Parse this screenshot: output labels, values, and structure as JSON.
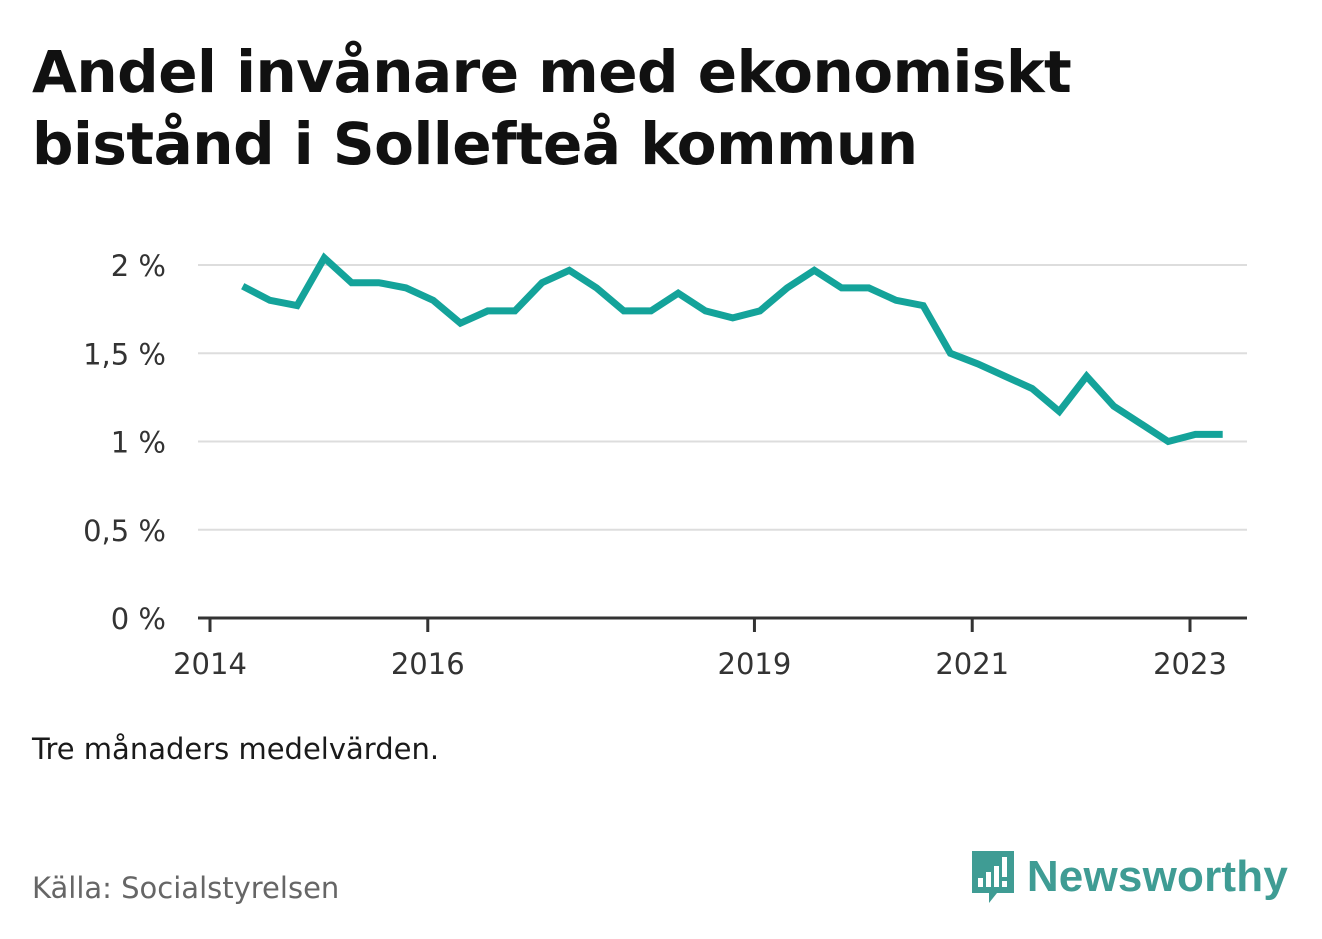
{
  "title": "Andel invånare med ekonomiskt bistånd i Sollefteå kommun",
  "note": "Tre månaders medelvärden.",
  "source": "Källa: Socialstyrelsen",
  "brand": {
    "name": "Newsworthy",
    "logo_icon": "bar-chart-speech-bubble-icon",
    "color": "#3f9c94"
  },
  "colors": {
    "line": "#14a39a",
    "grid": "#dddddd",
    "axis": "#333333",
    "text": "#333333"
  },
  "chart_data": {
    "type": "line",
    "title": "Andel invånare med ekonomiskt bistånd i Sollefteå kommun",
    "xlabel": "",
    "ylabel": "",
    "ylim": [
      0,
      2
    ],
    "xlim": [
      2014.0,
      2023.75
    ],
    "y_ticks": [
      0,
      0.5,
      1,
      1.5,
      2
    ],
    "y_tick_labels": [
      "0 %",
      "0,5 %",
      "1 %",
      "1,5 %",
      "2 %"
    ],
    "x_ticks": [
      2014,
      2016,
      2019,
      2021,
      2023
    ],
    "x_tick_labels": [
      "2014",
      "2016",
      "2019",
      "2021",
      "2023"
    ],
    "grid": true,
    "series": [
      {
        "x": [
          2014.3,
          2014.55,
          2014.8,
          2015.05,
          2015.3,
          2015.55,
          2015.8,
          2016.05,
          2016.3,
          2016.55,
          2016.8,
          2017.05,
          2017.3,
          2017.55,
          2017.8,
          2018.05,
          2018.3,
          2018.55,
          2018.8,
          2019.05,
          2019.3,
          2019.55,
          2019.8,
          2020.05,
          2020.3,
          2020.55,
          2020.8,
          2021.05,
          2021.3,
          2021.55,
          2021.8,
          2022.05,
          2022.3,
          2022.55,
          2022.8,
          2023.05,
          2023.3
        ],
        "values": [
          1.88,
          1.8,
          1.77,
          2.04,
          1.9,
          1.9,
          1.87,
          1.8,
          1.67,
          1.74,
          1.74,
          1.9,
          1.97,
          1.87,
          1.74,
          1.74,
          1.84,
          1.74,
          1.7,
          1.74,
          1.87,
          1.97,
          1.87,
          1.87,
          1.8,
          1.77,
          1.5,
          1.44,
          1.37,
          1.3,
          1.17,
          1.37,
          1.2,
          1.1,
          1.0,
          1.04,
          1.04
        ]
      }
    ]
  }
}
